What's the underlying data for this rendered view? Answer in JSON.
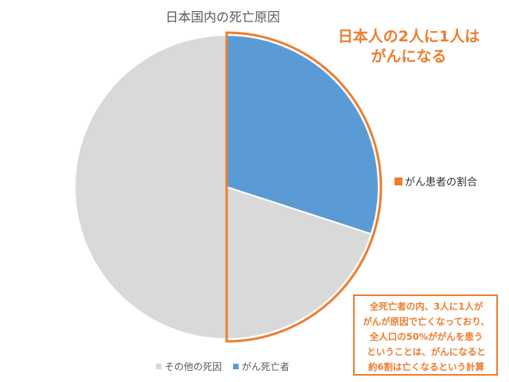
{
  "headline": {
    "line1": "日本人の2人に1人は",
    "line2": "がんになる"
  },
  "side_legend_label": "がん患者の割合",
  "note_lines": [
    "全死亡者の内、3人に1人が",
    "がんが原因で亡くなっており、",
    "全人口の50%ががんを患う",
    "ということは、がんになると",
    "約6割は亡くなるという計算"
  ],
  "colors": {
    "cancer": "#5b9bd5",
    "other": "#d9d9d9",
    "accent": "#ed7d31"
  },
  "chart_data": {
    "type": "pie",
    "title": "日本国内の死亡原因",
    "series": [
      {
        "name": "その他の死因",
        "value": 70
      },
      {
        "name": "がん死亡者",
        "value": 30
      }
    ],
    "legend_position": "bottom",
    "start_angle": 0,
    "direction": "clockwise",
    "draw_order": [
      1,
      0
    ],
    "highlight": {
      "label": "がん患者の割合",
      "share": 50
    }
  }
}
